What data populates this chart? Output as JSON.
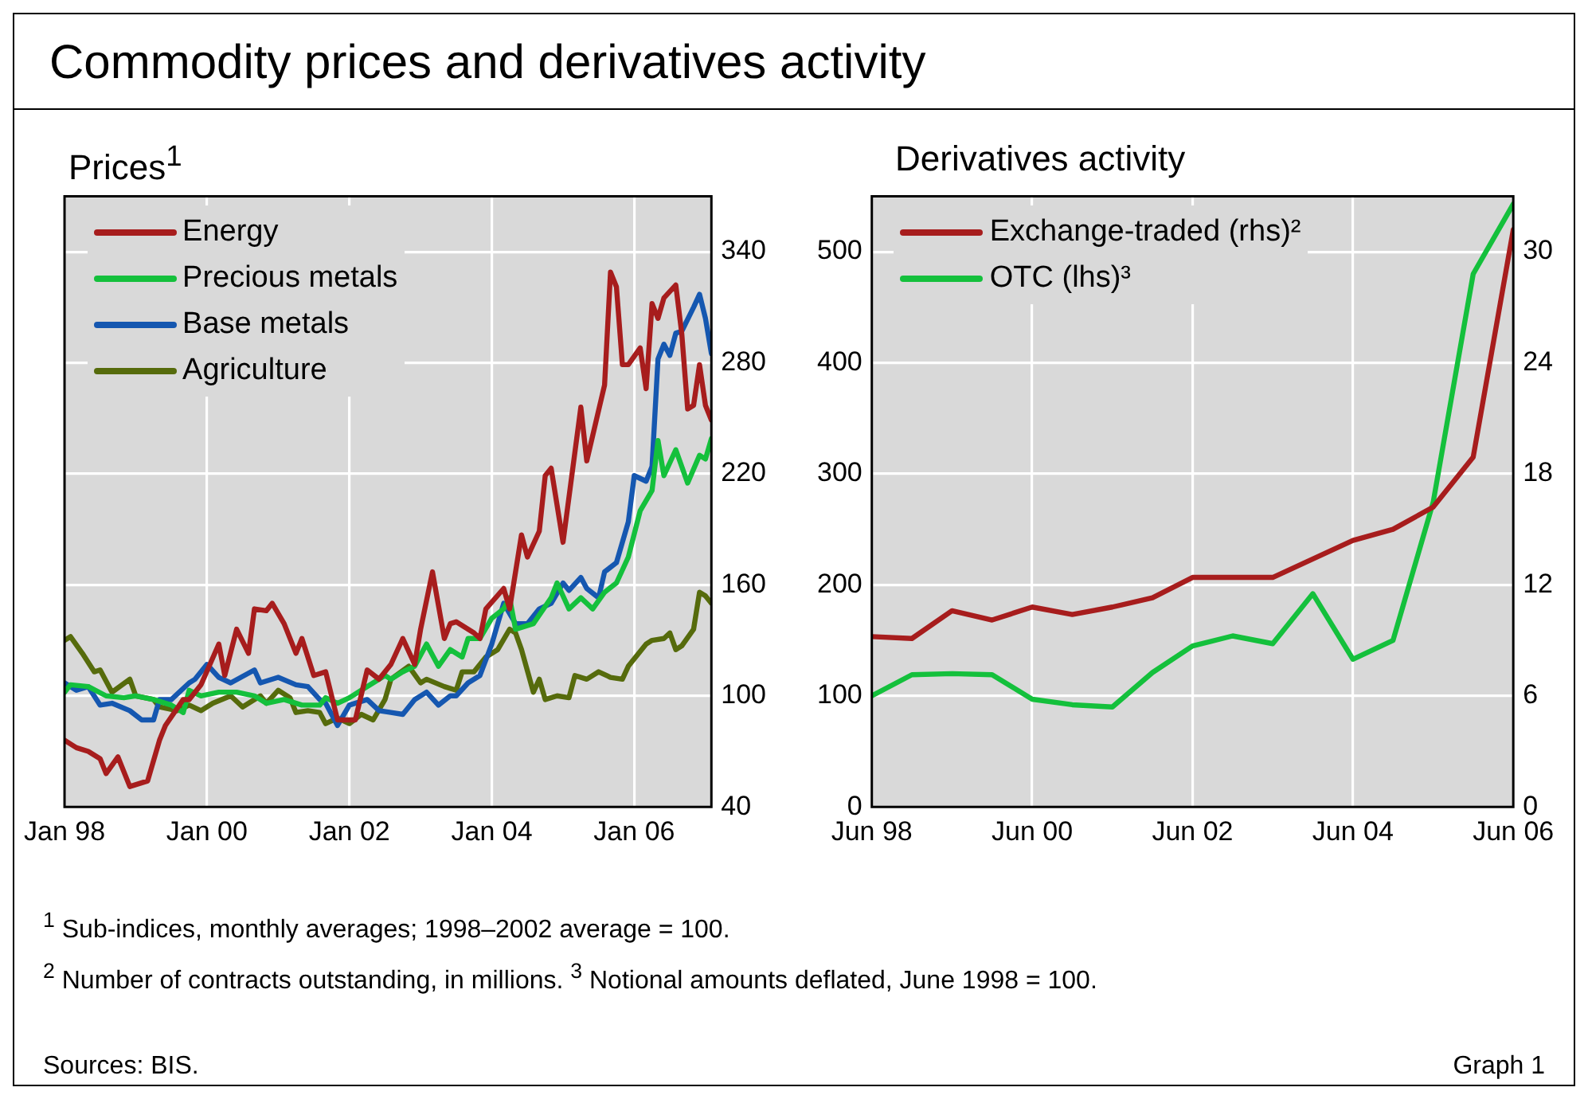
{
  "chart_data": [
    {
      "type": "line",
      "title": "Commodity prices and derivatives activity",
      "subtitle": "Prices$^{1}$",
      "grid": true,
      "legend": "top left",
      "marker": "none",
      "xlim": [
        "1998-01",
        "2007-02"
      ],
      "xticks": [
        {
          "value": "1998-01",
          "label": "Jan 98"
        },
        {
          "value": "2000-01",
          "label": "Jan 00"
        },
        {
          "value": "2002-01",
          "label": "Jan 02"
        },
        {
          "value": "2004-01",
          "label": "Jan 04"
        },
        {
          "value": "2006-01",
          "label": "Jan 06"
        }
      ],
      "ylim": [
        40,
        370
      ],
      "yticks": [
        40,
        100,
        160,
        220,
        280,
        340
      ],
      "series": [
        {
          "name": "Energy",
          "color": "#a71d1d",
          "x": [
            "1998-01",
            "1998-03",
            "1998-05",
            "1998-07",
            "1998-08",
            "1998-10",
            "1998-12",
            "1999-03",
            "1999-05",
            "1999-06",
            "1999-09",
            "1999-10",
            "1999-12",
            "2000-03",
            "2000-04",
            "2000-06",
            "2000-08",
            "2000-09",
            "2000-11",
            "2000-12",
            "2001-02",
            "2001-04",
            "2001-05",
            "2001-07",
            "2001-09",
            "2001-11",
            "2002-01",
            "2002-02",
            "2002-04",
            "2002-06",
            "2002-08",
            "2002-10",
            "2002-12",
            "2003-01",
            "2003-03",
            "2003-05",
            "2003-06",
            "2003-07",
            "2003-10",
            "2003-11",
            "2003-12",
            "2004-03",
            "2004-04",
            "2004-06",
            "2004-07",
            "2004-09",
            "2004-10",
            "2004-11",
            "2005-01",
            "2005-04",
            "2005-05",
            "2005-08",
            "2005-09",
            "2005-10",
            "2005-11",
            "2005-12",
            "2006-02",
            "2006-03",
            "2006-04",
            "2006-05",
            "2006-06",
            "2006-08",
            "2006-09",
            "2006-10",
            "2006-11",
            "2006-12",
            "2007-01",
            "2007-02"
          ],
          "values": [
            76,
            72,
            70,
            66,
            58,
            67,
            51,
            54,
            76,
            84,
            98,
            98,
            106,
            128,
            111,
            136,
            123,
            147,
            146,
            150,
            139,
            123,
            131,
            111,
            113,
            87,
            87,
            87,
            114,
            109,
            117,
            131,
            117,
            136,
            167,
            131,
            139,
            140,
            134,
            131,
            147,
            158,
            147,
            187,
            175,
            189,
            219,
            223,
            183,
            256,
            227,
            268,
            329,
            321,
            279,
            279,
            288,
            266,
            312,
            304,
            315,
            322,
            296,
            255,
            257,
            279,
            257,
            249
          ]
        },
        {
          "name": "Precious metals",
          "color": "#14c03c",
          "x": [
            "1998-01",
            "1998-02",
            "1998-05",
            "1998-08",
            "1998-11",
            "1999-01",
            "1999-04",
            "1999-07",
            "1999-09",
            "1999-10",
            "1999-12",
            "2000-03",
            "2000-06",
            "2000-09",
            "2000-11",
            "2001-02",
            "2001-05",
            "2001-08",
            "2001-09",
            "2001-11",
            "2002-01",
            "2002-03",
            "2002-05",
            "2002-07",
            "2002-08",
            "2002-10",
            "2002-12",
            "2003-02",
            "2003-04",
            "2003-06",
            "2003-08",
            "2003-09",
            "2003-11",
            "2004-01",
            "2004-03",
            "2004-04",
            "2004-05",
            "2004-08",
            "2004-11",
            "2004-12",
            "2005-02",
            "2005-04",
            "2005-06",
            "2005-08",
            "2005-10",
            "2005-12",
            "2006-02",
            "2006-04",
            "2006-05",
            "2006-06",
            "2006-08",
            "2006-10",
            "2006-12",
            "2007-01",
            "2007-02"
          ],
          "values": [
            102,
            106,
            105,
            100,
            99,
            100,
            98,
            95,
            91,
            103,
            100,
            102,
            102,
            100,
            96,
            98,
            95,
            95,
            99,
            96,
            99,
            103,
            107,
            111,
            109,
            113,
            116,
            128,
            116,
            125,
            121,
            131,
            131,
            142,
            147,
            153,
            136,
            139,
            153,
            161,
            147,
            153,
            147,
            156,
            161,
            175,
            200,
            211,
            238,
            219,
            233,
            215,
            230,
            228,
            239
          ]
        },
        {
          "name": "Base metals",
          "color": "#1557b0",
          "x": [
            "1998-01",
            "1998-03",
            "1998-05",
            "1998-07",
            "1998-09",
            "1998-12",
            "1999-02",
            "1999-04",
            "1999-05",
            "1999-07",
            "1999-10",
            "1999-11",
            "2000-01",
            "2000-03",
            "2000-05",
            "2000-09",
            "2000-10",
            "2001-01",
            "2001-04",
            "2001-06",
            "2001-08",
            "2001-09",
            "2001-11",
            "2002-01",
            "2002-04",
            "2002-06",
            "2002-08",
            "2002-10",
            "2002-12",
            "2003-02",
            "2003-04",
            "2003-06",
            "2003-07",
            "2003-09",
            "2003-11",
            "2004-01",
            "2004-03",
            "2004-05",
            "2004-07",
            "2004-09",
            "2004-11",
            "2005-01",
            "2005-02",
            "2005-04",
            "2005-05",
            "2005-07",
            "2005-08",
            "2005-10",
            "2005-12",
            "2006-01",
            "2006-03",
            "2006-04",
            "2006-05",
            "2006-06",
            "2006-07",
            "2006-08",
            "2006-09",
            "2006-11",
            "2006-12",
            "2007-01",
            "2007-02"
          ],
          "values": [
            107,
            103,
            105,
            95,
            96,
            92,
            87,
            87,
            98,
            98,
            107,
            109,
            117,
            110,
            107,
            114,
            107,
            110,
            106,
            105,
            98,
            96,
            84,
            95,
            98,
            92,
            91,
            90,
            98,
            102,
            95,
            100,
            100,
            107,
            111,
            128,
            150,
            139,
            139,
            147,
            150,
            161,
            157,
            164,
            158,
            153,
            167,
            172,
            194,
            219,
            216,
            224,
            282,
            290,
            284,
            296,
            297,
            310,
            317,
            304,
            285
          ]
        },
        {
          "name": "Agriculture",
          "color": "#566b0c",
          "x": [
            "1998-01",
            "1998-02",
            "1998-04",
            "1998-06",
            "1998-07",
            "1998-09",
            "1998-12",
            "1999-01",
            "1999-04",
            "1999-05",
            "1999-08",
            "1999-10",
            "1999-12",
            "2000-02",
            "2000-05",
            "2000-07",
            "2000-10",
            "2000-11",
            "2001-01",
            "2001-03",
            "2001-04",
            "2001-06",
            "2001-08",
            "2001-09",
            "2001-11",
            "2002-01",
            "2002-03",
            "2002-05",
            "2002-07",
            "2002-08",
            "2002-11",
            "2003-01",
            "2003-02",
            "2003-05",
            "2003-07",
            "2003-08",
            "2003-10",
            "2003-12",
            "2004-02",
            "2004-04",
            "2004-05",
            "2004-06",
            "2004-08",
            "2004-09",
            "2004-10",
            "2004-12",
            "2005-02",
            "2005-03",
            "2005-05",
            "2005-07",
            "2005-09",
            "2005-11",
            "2005-12",
            "2006-03",
            "2006-04",
            "2006-06",
            "2006-07",
            "2006-08",
            "2006-09",
            "2006-11",
            "2006-12",
            "2007-01",
            "2007-02"
          ],
          "values": [
            130,
            132,
            123,
            113,
            114,
            102,
            109,
            100,
            98,
            94,
            92,
            95,
            92,
            96,
            100,
            94,
            100,
            96,
            103,
            99,
            91,
            92,
            91,
            85,
            88,
            85,
            90,
            87,
            98,
            109,
            116,
            107,
            109,
            105,
            103,
            113,
            113,
            121,
            125,
            136,
            134,
            125,
            102,
            109,
            98,
            100,
            99,
            111,
            109,
            113,
            110,
            109,
            116,
            128,
            130,
            131,
            134,
            125,
            127,
            136,
            156,
            154,
            150
          ]
        }
      ],
      "annotations": [
        "$^{1}$  Sub-indices, monthly averages; 1998–2002 average = 100.",
        "$^{2}$  Number of contracts outstanding, in millions.   $^{3}$  Notional amounts deflated, June 1998 = 100.",
        "Sources: BIS."
      ]
    },
    {
      "type": "line",
      "title": "Derivatives activity",
      "grid": true,
      "legend": "top left",
      "marker": "none",
      "x": [
        "1998-06",
        "1998-12",
        "1999-06",
        "1999-12",
        "2000-06",
        "2000-12",
        "2001-06",
        "2001-12",
        "2002-06",
        "2002-12",
        "2003-06",
        "2003-12",
        "2004-06",
        "2004-12",
        "2005-06",
        "2005-12",
        "2006-06"
      ],
      "xlim": [
        "1998-06",
        "2006-06"
      ],
      "xticks": [
        {
          "value": "1998-06",
          "label": "Jun 98"
        },
        {
          "value": "2000-06",
          "label": "Jun 00"
        },
        {
          "value": "2002-06",
          "label": "Jun 02"
        },
        {
          "value": "2004-06",
          "label": "Jun 04"
        },
        {
          "value": "2006-06",
          "label": "Jun 06"
        }
      ],
      "ylim": [
        0,
        550
      ],
      "yticks": [
        0,
        100,
        200,
        300,
        400,
        500
      ],
      "y2lim": [
        0,
        33
      ],
      "y2ticks": [
        0,
        6,
        12,
        18,
        24,
        30
      ],
      "series": [
        {
          "name": "Exchange-traded (rhs)²",
          "color": "#a71d1d",
          "axis": "y2",
          "values": [
            9.2,
            9.1,
            10.6,
            10.1,
            10.8,
            10.4,
            10.8,
            11.3,
            12.4,
            12.4,
            12.4,
            13.4,
            14.4,
            15.0,
            16.2,
            18.9,
            31.2
          ]
        },
        {
          "name": "OTC (lhs)³",
          "color": "#14c03c",
          "values": [
            100,
            119,
            120,
            119,
            97,
            92,
            90,
            121,
            145,
            154,
            147,
            192,
            133,
            150,
            274,
            480,
            543
          ]
        }
      ],
      "annotations": [
        "Graph 1"
      ]
    }
  ]
}
